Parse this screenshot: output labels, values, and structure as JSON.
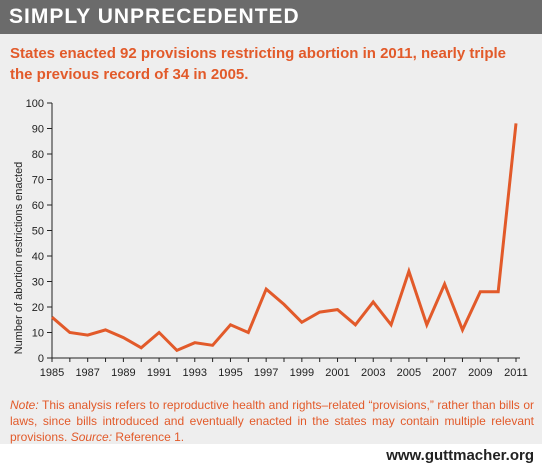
{
  "header": {
    "title": "SIMPLY UNPRECEDENTED"
  },
  "subtitle": "States enacted 92 provisions restricting abortion in 2011, nearly triple the previous record of 34 in 2005.",
  "note": {
    "lead": "Note:",
    "body": " This analysis refers to reproductive health and rights–related “provisions,” rather than bills or laws, since bills introduced and eventually enacted in the states may contain multiple relevant provisions. ",
    "source_label": "Source:",
    "source_text": " Reference 1."
  },
  "footer": {
    "url": "www.guttmacher.org"
  },
  "colors": {
    "line": "#e25a2a",
    "text_accent": "#e25a2a",
    "header_bg": "#6b6b6b",
    "panel_bg": "#eeeeee",
    "axis": "#222222"
  },
  "chart_data": {
    "type": "line",
    "title": "States enacted 92 provisions restricting abortion in 2011, nearly triple the previous record of 34 in 2005.",
    "xlabel": "",
    "ylabel": "Number of abortion restrictions enacted",
    "xlim": [
      1985,
      2011
    ],
    "ylim": [
      0,
      100
    ],
    "y_ticks": [
      0,
      10,
      20,
      30,
      40,
      50,
      60,
      70,
      80,
      90,
      100
    ],
    "x_ticks": [
      "1985",
      "1987",
      "1989",
      "1991",
      "1993",
      "1995",
      "1997",
      "1999",
      "2001",
      "2003",
      "2005",
      "2007",
      "2009",
      "2011"
    ],
    "grid": false,
    "x": [
      1985,
      1986,
      1987,
      1988,
      1989,
      1990,
      1991,
      1992,
      1993,
      1994,
      1995,
      1996,
      1997,
      1998,
      1999,
      2000,
      2001,
      2002,
      2003,
      2004,
      2005,
      2006,
      2007,
      2008,
      2009,
      2010,
      2011
    ],
    "values": [
      16,
      10,
      9,
      11,
      8,
      4,
      10,
      3,
      6,
      5,
      13,
      10,
      27,
      21,
      14,
      18,
      19,
      13,
      22,
      13,
      34,
      13,
      29,
      11,
      26,
      26,
      92
    ]
  }
}
